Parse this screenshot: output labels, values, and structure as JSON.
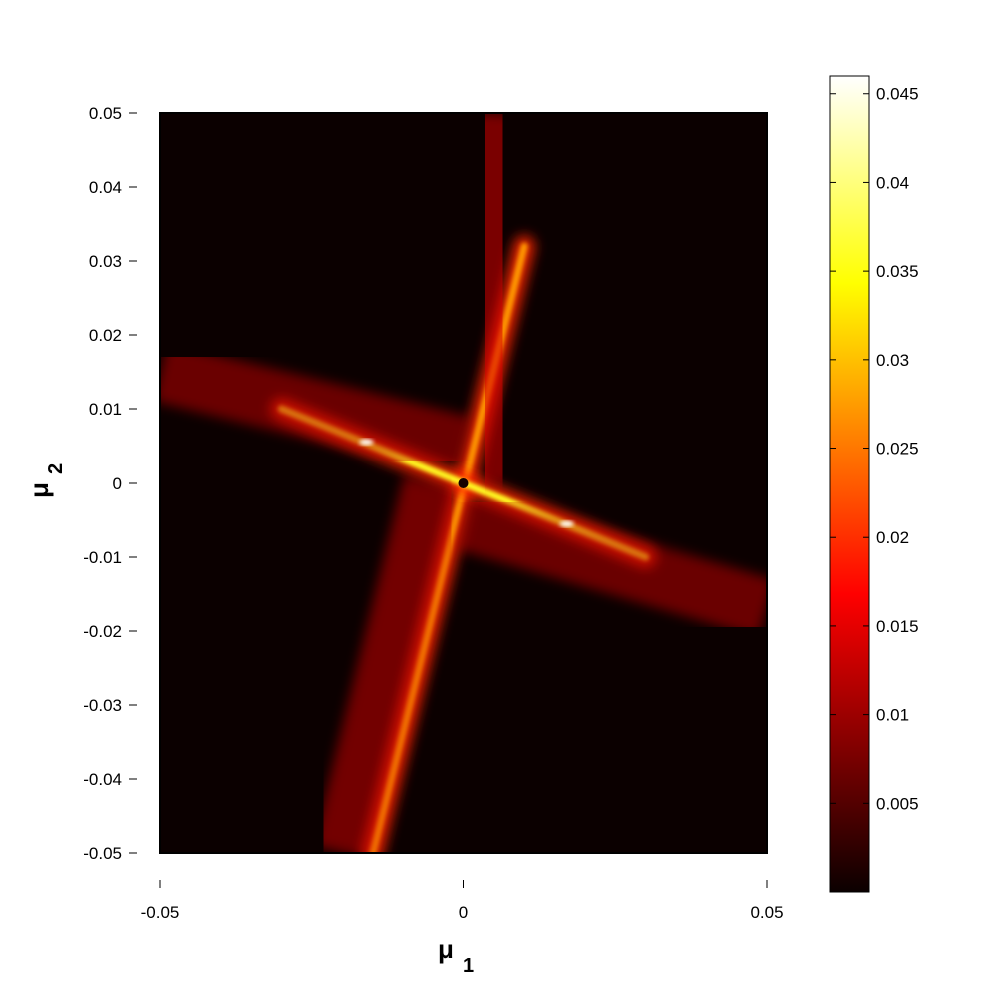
{
  "chart_data": {
    "type": "heatmap",
    "title": "",
    "xlabel": "μ",
    "xlabel_sub": "1",
    "ylabel": "μ",
    "ylabel_sub": "2",
    "xlim": [
      -0.05,
      0.05
    ],
    "ylim": [
      -0.05,
      0.05
    ],
    "x_ticks": [
      "-0.05",
      "0",
      "0.05"
    ],
    "x_tick_values": [
      -0.05,
      0,
      0.05
    ],
    "y_ticks": [
      "0.05",
      "0.04",
      "0.03",
      "0.02",
      "0.01",
      "0",
      "-0.01",
      "-0.02",
      "-0.03",
      "-0.04",
      "-0.05"
    ],
    "y_tick_values": [
      0.05,
      0.04,
      0.03,
      0.02,
      0.01,
      0,
      -0.01,
      -0.02,
      -0.03,
      -0.04,
      -0.05
    ],
    "colorbar": {
      "colormap": "hot",
      "range": [
        0,
        0.046
      ],
      "ticks": [
        "0.045",
        "0.04",
        "0.035",
        "0.03",
        "0.025",
        "0.02",
        "0.015",
        "0.01",
        "0.005"
      ],
      "tick_values": [
        0.045,
        0.04,
        0.035,
        0.03,
        0.025,
        0.02,
        0.015,
        0.01,
        0.005
      ]
    },
    "grid": false,
    "features": [
      {
        "name": "steep-ridge",
        "from": [
          -0.015,
          -0.05
        ],
        "to": [
          0.01,
          0.032
        ],
        "peak_value": 0.035
      },
      {
        "name": "shallow-ridge",
        "from": [
          -0.03,
          0.01
        ],
        "to": [
          0.03,
          -0.01
        ],
        "peak_value": 0.046
      },
      {
        "name": "vertical-band-upper",
        "from": [
          0.006,
          0.05
        ],
        "to": [
          0.004,
          0.0
        ],
        "value": 0.014
      },
      {
        "name": "vertical-band-lower",
        "from": [
          -0.02,
          -0.05
        ],
        "to": [
          -0.005,
          0.0
        ],
        "value": 0.013
      },
      {
        "name": "horizontal-band-left",
        "from": [
          -0.05,
          0.015
        ],
        "to": [
          0.0,
          0.005
        ],
        "value": 0.012
      },
      {
        "name": "horizontal-band-right",
        "from": [
          0.0,
          -0.005
        ],
        "to": [
          0.05,
          -0.017
        ],
        "value": 0.012
      }
    ]
  }
}
